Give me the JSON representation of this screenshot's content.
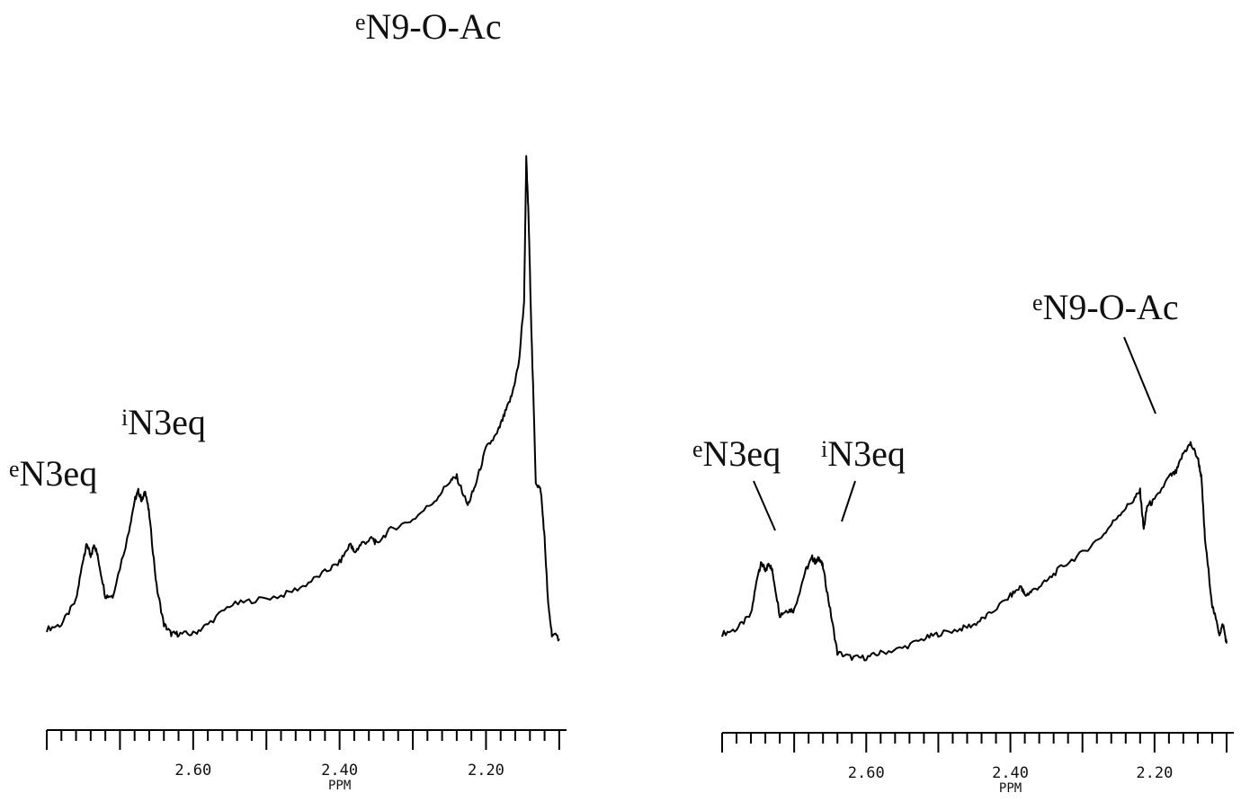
{
  "chart_data": [
    {
      "type": "line",
      "title": "",
      "xlabel": "PPM",
      "ylabel": "",
      "xlim": [
        2.8,
        2.09
      ],
      "x_reversed": true,
      "grid": false,
      "xticks_labeled": [
        "2.60",
        "2.40",
        "2.20"
      ],
      "minor_tick_step": 0.02,
      "annotations": [
        {
          "prefix": "e",
          "text": "N3eq",
          "x": 2.74
        },
        {
          "prefix": "i",
          "text": "N3eq",
          "x": 2.67
        },
        {
          "prefix": "e",
          "text": "N9-O-Ac",
          "x": 2.145
        }
      ],
      "series": [
        {
          "x": [
            2.8,
            2.78,
            2.76,
            2.75,
            2.745,
            2.74,
            2.735,
            2.73,
            2.72,
            2.71,
            2.69,
            2.68,
            2.675,
            2.67,
            2.665,
            2.66,
            2.65,
            2.64,
            2.63,
            2.62,
            2.6,
            2.58,
            2.55,
            2.52,
            2.48,
            2.45,
            2.42,
            2.4,
            2.385,
            2.38,
            2.37,
            2.355,
            2.35,
            2.33,
            2.3,
            2.27,
            2.25,
            2.24,
            2.225,
            2.215,
            2.2,
            2.185,
            2.175,
            2.165,
            2.155,
            2.148,
            2.145,
            2.142,
            2.138,
            2.132,
            2.125,
            2.12,
            2.115,
            2.11,
            2.1
          ],
          "y": [
            0.01,
            0.02,
            0.07,
            0.16,
            0.19,
            0.16,
            0.19,
            0.16,
            0.08,
            0.08,
            0.2,
            0.28,
            0.3,
            0.28,
            0.3,
            0.25,
            0.1,
            0.02,
            0.0,
            0.0,
            0.0,
            0.02,
            0.06,
            0.07,
            0.08,
            0.1,
            0.13,
            0.15,
            0.19,
            0.17,
            0.19,
            0.2,
            0.19,
            0.22,
            0.24,
            0.28,
            0.32,
            0.33,
            0.27,
            0.31,
            0.39,
            0.42,
            0.46,
            0.5,
            0.57,
            0.7,
            1.0,
            0.88,
            0.64,
            0.32,
            0.3,
            0.2,
            0.06,
            0.0,
            -0.01
          ]
        }
      ]
    },
    {
      "type": "line",
      "title": "",
      "xlabel": "PPM",
      "ylabel": "",
      "xlim": [
        2.8,
        2.09
      ],
      "x_reversed": true,
      "grid": false,
      "xticks_labeled": [
        "2.60",
        "2.40",
        "2.20"
      ],
      "minor_tick_step": 0.02,
      "annotations": [
        {
          "prefix": "e",
          "text": "N3eq",
          "x": 2.74
        },
        {
          "prefix": "i",
          "text": "N3eq",
          "x": 2.67
        },
        {
          "prefix": "e",
          "text": "N9-O-Ac",
          "x": 2.175
        }
      ],
      "series": [
        {
          "x": [
            2.8,
            2.78,
            2.76,
            2.75,
            2.745,
            2.74,
            2.735,
            2.73,
            2.72,
            2.71,
            2.7,
            2.685,
            2.675,
            2.67,
            2.665,
            2.66,
            2.65,
            2.64,
            2.62,
            2.6,
            2.58,
            2.55,
            2.52,
            2.5,
            2.47,
            2.45,
            2.43,
            2.4,
            2.385,
            2.38,
            2.37,
            2.35,
            2.33,
            2.3,
            2.27,
            2.25,
            2.23,
            2.22,
            2.215,
            2.21,
            2.2,
            2.18,
            2.17,
            2.16,
            2.15,
            2.14,
            2.135,
            2.13,
            2.12,
            2.11,
            2.105,
            2.1
          ],
          "y": [
            0.0,
            0.01,
            0.04,
            0.13,
            0.15,
            0.13,
            0.15,
            0.13,
            0.04,
            0.05,
            0.05,
            0.13,
            0.16,
            0.15,
            0.16,
            0.14,
            0.05,
            -0.04,
            -0.05,
            -0.05,
            -0.04,
            -0.03,
            -0.01,
            0.0,
            0.01,
            0.02,
            0.04,
            0.08,
            0.1,
            0.08,
            0.09,
            0.11,
            0.14,
            0.17,
            0.21,
            0.25,
            0.28,
            0.3,
            0.22,
            0.27,
            0.28,
            0.33,
            0.34,
            0.38,
            0.4,
            0.37,
            0.33,
            0.2,
            0.06,
            0.0,
            0.02,
            -0.02
          ]
        }
      ]
    }
  ]
}
